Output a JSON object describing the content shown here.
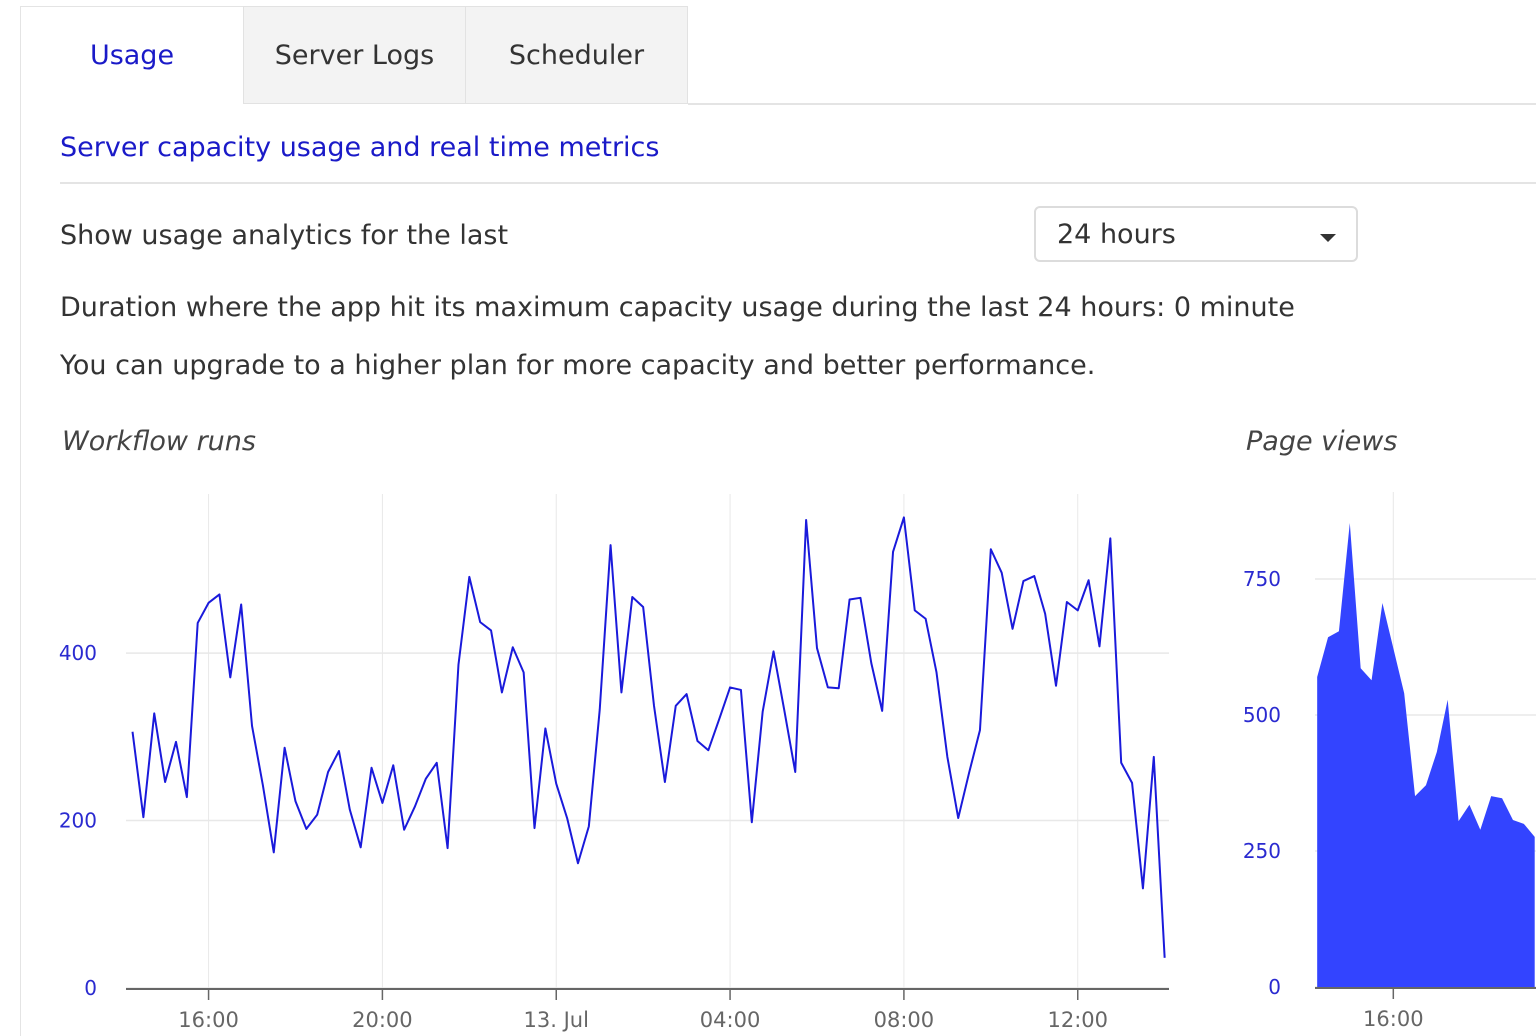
{
  "tabs": [
    "Usage",
    "Server Logs",
    "Scheduler"
  ],
  "subtitle": "Server capacity usage and real time metrics",
  "filter_label": "Show usage analytics for the last",
  "filter_value": "24 hours",
  "duration_text": "Duration where the app hit its maximum capacity usage during the last 24 hours: 0 minute",
  "upgrade_text": "You can upgrade to a higher plan for more capacity and better performance.",
  "chart_data": [
    {
      "type": "line",
      "title": "Workflow runs",
      "color": "#1a1adb",
      "grid": true,
      "x": [
        14.25,
        14.5,
        14.75,
        15,
        15.25,
        15.5,
        15.75,
        16,
        16.25,
        16.5,
        16.75,
        17,
        17.25,
        17.5,
        17.75,
        18,
        18.25,
        18.5,
        18.75,
        19,
        19.25,
        19.5,
        19.75,
        20,
        20.25,
        20.5,
        20.75,
        21,
        21.25,
        21.5,
        21.75,
        22,
        22.25,
        22.5,
        22.75,
        23,
        23.25,
        23.5,
        23.75,
        24,
        24.25,
        24.5,
        24.75,
        25,
        25.25,
        25.5,
        25.75,
        26,
        26.25,
        26.5,
        26.75,
        27,
        27.25,
        27.5,
        27.75,
        28,
        28.25,
        28.5,
        28.75,
        29,
        29.25,
        29.5,
        29.75,
        30,
        30.25,
        30.5,
        30.75,
        31,
        31.25,
        31.5,
        31.75,
        32,
        32.25,
        32.5,
        32.75,
        33,
        33.25,
        33.5,
        33.75,
        34,
        34.25,
        34.5,
        34.75,
        35,
        35.25,
        35.5,
        35.75,
        36,
        36.25,
        36.5,
        36.75,
        37,
        37.25,
        37.5,
        37.75,
        38
      ],
      "values": [
        306,
        204,
        328,
        246,
        294,
        228,
        436,
        460,
        470,
        371,
        458,
        313,
        242,
        162,
        287,
        223,
        190,
        207,
        258,
        283,
        213,
        168,
        263,
        221,
        266,
        189,
        217,
        250,
        269,
        167,
        386,
        491,
        437,
        427,
        353,
        407,
        377,
        191,
        310,
        244,
        203,
        149,
        193,
        332,
        529,
        353,
        467,
        455,
        337,
        246,
        337,
        351,
        295,
        284,
        321,
        359,
        356,
        198,
        330,
        402,
        331,
        258,
        559,
        406,
        359,
        358,
        464,
        466,
        388,
        331,
        521,
        562,
        451,
        441,
        377,
        276,
        203,
        257,
        308,
        524,
        496,
        429,
        486,
        492,
        447,
        361,
        461,
        451,
        487,
        408,
        537,
        269,
        245,
        119,
        276,
        36
      ],
      "xlim": [
        14.1,
        38.1
      ],
      "xticks": [
        {
          "value": 16,
          "label": "16:00"
        },
        {
          "value": 20,
          "label": "20:00"
        },
        {
          "value": 24,
          "label": "13. Jul"
        },
        {
          "value": 28,
          "label": "04:00"
        },
        {
          "value": 32,
          "label": "08:00"
        },
        {
          "value": 36,
          "label": "12:00"
        }
      ],
      "ylim": [
        0,
        590
      ],
      "yticks": [
        0,
        200,
        400
      ]
    },
    {
      "type": "area",
      "title": "Page views",
      "color": "#3344ff",
      "grid": true,
      "x": [
        14.25,
        14.5,
        14.75,
        15,
        15.25,
        15.5,
        15.75,
        16,
        16.25,
        16.5,
        16.75,
        17,
        17.25,
        17.5,
        17.75,
        18,
        18.25,
        18.5,
        18.75,
        19,
        19.25
      ],
      "values": [
        570,
        643,
        654,
        853,
        586,
        564,
        706,
        623,
        540,
        351,
        371,
        432,
        528,
        305,
        335,
        289,
        351,
        347,
        307,
        300,
        276
      ],
      "xlim": [
        14.2,
        19.28
      ],
      "xticks": [
        {
          "value": 16,
          "label": "16:00"
        }
      ],
      "ylim": [
        0,
        910
      ],
      "yticks": [
        0,
        250,
        500,
        750
      ]
    }
  ]
}
